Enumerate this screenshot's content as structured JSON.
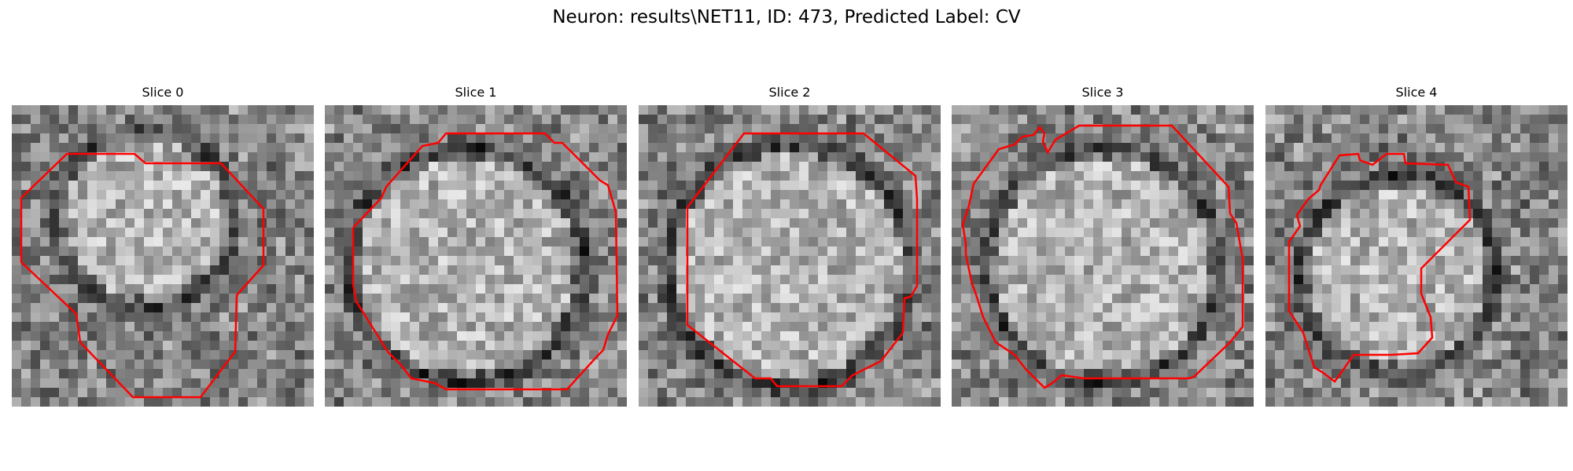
{
  "figure": {
    "title": "Neuron: results\\NET11, ID: 473, Predicted Label: CV",
    "contour_color": "#ff0000",
    "colormap": "grayscale"
  },
  "slices": [
    {
      "title": "Slice 0"
    },
    {
      "title": "Slice 1"
    },
    {
      "title": "Slice 2"
    },
    {
      "title": "Slice 3"
    },
    {
      "title": "Slice 4"
    }
  ]
}
